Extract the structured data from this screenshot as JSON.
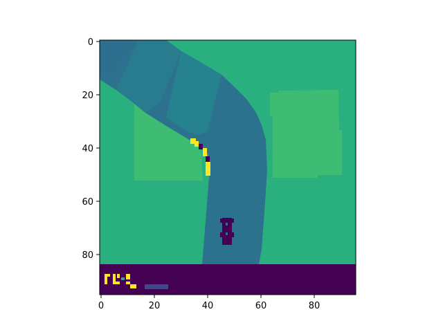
{
  "chart_data": {
    "type": "heatmap",
    "title": "",
    "xlabel": "",
    "ylabel": "",
    "x_range": [
      0,
      96
    ],
    "y_range": [
      0,
      96
    ],
    "x_ticks": [
      0,
      20,
      40,
      60,
      80
    ],
    "y_ticks": [
      0,
      20,
      40,
      60,
      80
    ],
    "x_tick_labels": [
      "0",
      "20",
      "40",
      "60",
      "80"
    ],
    "y_tick_labels": [
      "0",
      "20",
      "40",
      "60",
      "80"
    ],
    "colormap": "viridis",
    "scene": "top-down car racing frame: grass field, curved road, car, bottom status bar"
  },
  "colors": {
    "grass": "#2aaf7f",
    "grass_patch": "#3fbc73",
    "road_dark": "#2e6f8e",
    "road": "#2c728e",
    "road_light": "#297b8e",
    "road_lighter": "#26828e",
    "kerb_yellow": "#fde725",
    "kerb_purple": "#440154",
    "car": "#440154",
    "hud_bg": "#440154",
    "hud_bar": "#3e4989"
  }
}
